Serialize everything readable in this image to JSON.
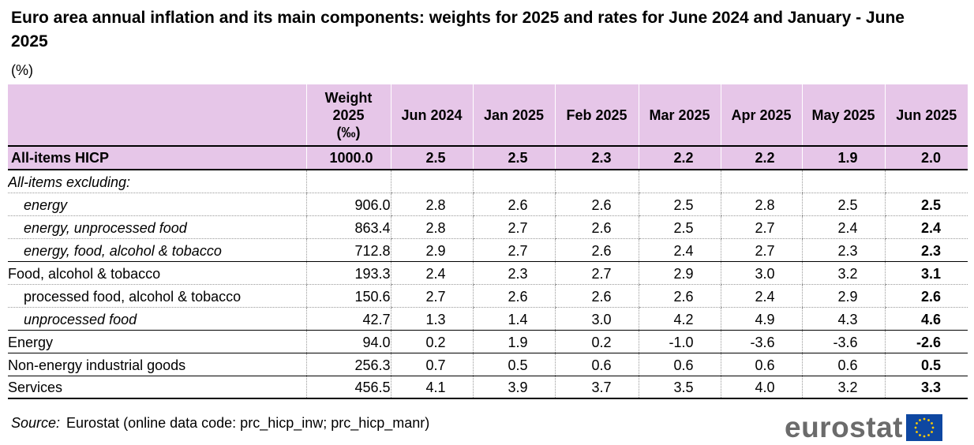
{
  "title": "Euro area annual inflation and its main components: weights for 2025 and rates for June 2024 and January - June 2025",
  "unit": "(%)",
  "source_label": "Source:",
  "source_text": "Eurostat (online data code: prc_hicp_inw; prc_hicp_manr)",
  "logo_text": "eurostat",
  "colors": {
    "header_bg": "#e6c6e8",
    "logo_gray": "#6b6b6b",
    "flag_blue": "#0e47a1",
    "flag_star": "#ffcc00"
  },
  "chart_data": {
    "type": "table",
    "title": "Euro area annual inflation and its main components: weights for 2025 and rates for June 2024 and January - June 2025",
    "unit": "(%)",
    "columns": [
      "Weight 2025 (‰)",
      "Jun 2024",
      "Jan 2025",
      "Feb 2025",
      "Mar 2025",
      "Apr 2025",
      "May 2025",
      "Jun 2025"
    ],
    "column_parts": {
      "weight": [
        "Weight",
        "2025",
        "(‰)"
      ]
    },
    "rows": [
      {
        "label": "All-items HICP",
        "values": [
          "1000.0",
          "2.5",
          "2.5",
          "2.3",
          "2.2",
          "2.2",
          "1.9",
          "2.0"
        ]
      },
      {
        "label": "All-items excluding:",
        "values": []
      },
      {
        "label": "energy",
        "values": [
          "906.0",
          "2.8",
          "2.6",
          "2.6",
          "2.5",
          "2.8",
          "2.5",
          "2.5"
        ]
      },
      {
        "label": "energy, unprocessed food",
        "values": [
          "863.4",
          "2.8",
          "2.7",
          "2.6",
          "2.5",
          "2.7",
          "2.4",
          "2.4"
        ]
      },
      {
        "label": "energy, food, alcohol & tobacco",
        "values": [
          "712.8",
          "2.9",
          "2.7",
          "2.6",
          "2.4",
          "2.7",
          "2.3",
          "2.3"
        ]
      },
      {
        "label": "Food, alcohol & tobacco",
        "values": [
          "193.3",
          "2.4",
          "2.3",
          "2.7",
          "2.9",
          "3.0",
          "3.2",
          "3.1"
        ]
      },
      {
        "label": "processed food, alcohol & tobacco",
        "values": [
          "150.6",
          "2.7",
          "2.6",
          "2.6",
          "2.6",
          "2.4",
          "2.9",
          "2.6"
        ]
      },
      {
        "label": "unprocessed food",
        "values": [
          "42.7",
          "1.3",
          "1.4",
          "3.0",
          "4.2",
          "4.9",
          "4.3",
          "4.6"
        ]
      },
      {
        "label": "Energy",
        "values": [
          "94.0",
          "0.2",
          "1.9",
          "0.2",
          "-1.0",
          "-3.6",
          "-3.6",
          "-2.6"
        ]
      },
      {
        "label": "Non-energy industrial goods",
        "values": [
          "256.3",
          "0.7",
          "0.5",
          "0.6",
          "0.6",
          "0.6",
          "0.6",
          "0.5"
        ]
      },
      {
        "label": "Services",
        "values": [
          "456.5",
          "4.1",
          "3.9",
          "3.7",
          "3.5",
          "4.0",
          "3.2",
          "3.3"
        ]
      }
    ]
  }
}
